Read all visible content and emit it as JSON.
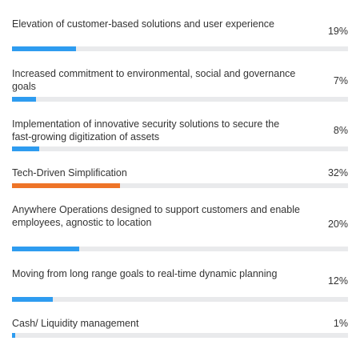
{
  "results": [
    {
      "label": "Elevation of customer-based solutions and user experience",
      "percent_text": "19%",
      "value": 19,
      "color": "#2e9cf0"
    },
    {
      "label": "Increased commitment to environmental, social and governance goals",
      "percent_text": "7%",
      "value": 7,
      "color": "#2e9cf0"
    },
    {
      "label": "Implementation of innovative security solutions to secure the fast-growing digitization of assets",
      "percent_text": "8%",
      "value": 8,
      "color": "#2e9cf0"
    },
    {
      "label": "Tech-Driven Simplification",
      "percent_text": "32%",
      "value": 32,
      "color": "#ee7428"
    },
    {
      "label": "Anywhere Operations designed to support customers and enable employees, agnostic to location",
      "percent_text": "20%",
      "value": 20,
      "color": "#2e9cf0"
    },
    {
      "label": "Moving from long range goals to real-time dynamic planning",
      "percent_text": "12%",
      "value": 12,
      "color": "#2e9cf0"
    },
    {
      "label": "Cash/ Liquidity management",
      "percent_text": "1%",
      "value": 1,
      "color": "#2e9cf0"
    }
  ]
}
